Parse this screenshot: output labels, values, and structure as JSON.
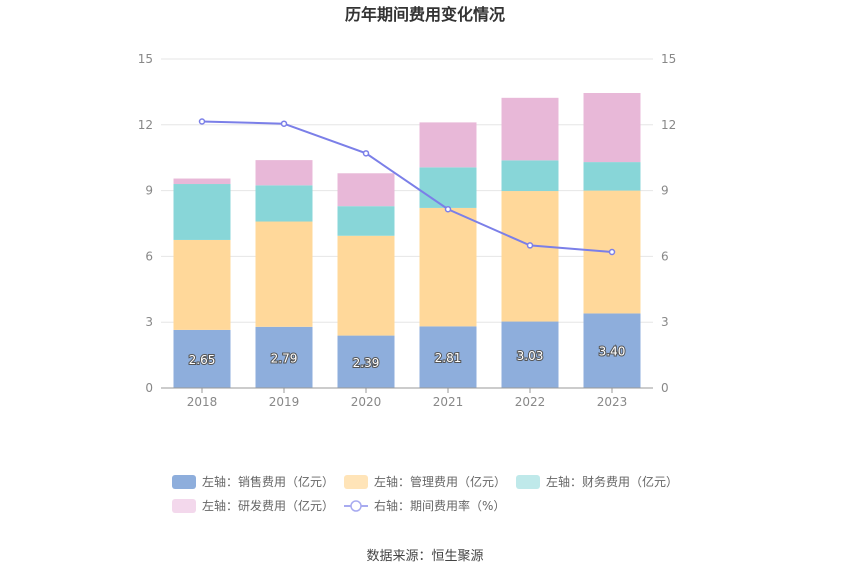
{
  "chart_data": {
    "type": "bar",
    "stacked": true,
    "title": "历年期间费用变化情况",
    "categories": [
      "2018",
      "2019",
      "2020",
      "2021",
      "2022",
      "2023"
    ],
    "left_axis": {
      "ylim": [
        0,
        15
      ],
      "ticks": [
        "0",
        "3",
        "6",
        "9",
        "12",
        "15"
      ]
    },
    "right_axis": {
      "ylim": [
        0,
        15
      ],
      "ticks": [
        "0",
        "3",
        "6",
        "9",
        "12",
        "15"
      ]
    },
    "series": [
      {
        "name": "左轴：销售费用（亿元）",
        "color": "#8eaedc",
        "values": [
          2.65,
          2.79,
          2.39,
          2.81,
          3.03,
          3.4
        ],
        "labels": [
          "2.65",
          "2.79",
          "2.39",
          "2.81",
          "3.03",
          "3.40"
        ]
      },
      {
        "name": "左轴：管理费用（亿元）",
        "color": "#ffd89a",
        "values": [
          4.1,
          4.8,
          4.55,
          5.4,
          5.95,
          5.6
        ]
      },
      {
        "name": "左轴：财务费用（亿元）",
        "color": "#88d6d8",
        "values": [
          2.55,
          1.65,
          1.35,
          1.85,
          1.4,
          1.3
        ]
      },
      {
        "name": "左轴：研发费用（亿元）",
        "color": "#e8b8d8",
        "values": [
          0.25,
          1.15,
          1.5,
          2.05,
          2.85,
          3.15
        ]
      }
    ],
    "line": {
      "name": "右轴：期间费用率（%）",
      "color": "#7b7fe8",
      "values": [
        12.15,
        12.05,
        10.7,
        8.15,
        6.5,
        6.2
      ]
    },
    "grid": true,
    "legend_position": "bottom"
  },
  "source": "数据来源：恒生聚源"
}
